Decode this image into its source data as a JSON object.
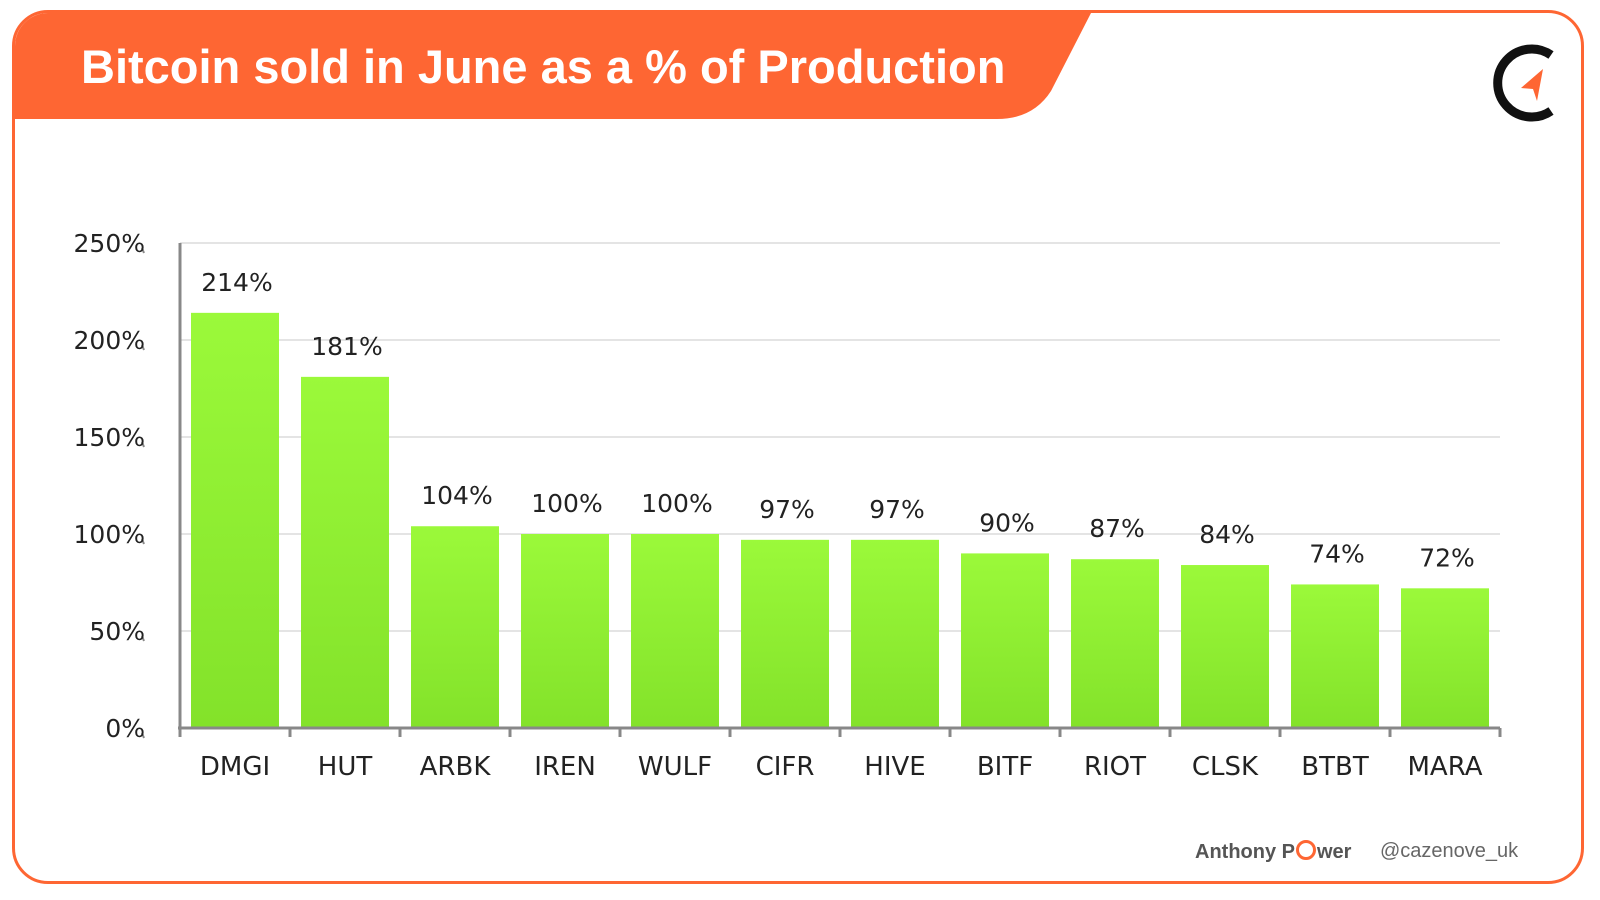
{
  "colors": {
    "brand": "#fe6633",
    "bar_top": "#9bf93a",
    "bar_bottom": "#83e22a",
    "axis": "#888888",
    "grid": "#e4e4e4",
    "text": "#222222"
  },
  "header": {
    "title": "Bitcoin sold in June as a % of Production",
    "logo_icon": "cazenove-c-logo-icon"
  },
  "footer": {
    "author_prefix": "Anthony P",
    "author_suffix": "wer",
    "handle": "@cazenove_uk"
  },
  "chart_data": {
    "type": "bar",
    "title": "Bitcoin sold in June as a % of Production",
    "xlabel": "",
    "ylabel": "",
    "categories": [
      "DMGI",
      "HUT",
      "ARBK",
      "IREN",
      "WULF",
      "CIFR",
      "HIVE",
      "BITF",
      "RIOT",
      "CLSK",
      "BTBT",
      "MARA"
    ],
    "values": [
      214,
      181,
      104,
      100,
      100,
      97,
      97,
      90,
      87,
      84,
      74,
      72
    ],
    "value_labels": [
      "214%",
      "181%",
      "104%",
      "100%",
      "100%",
      "97%",
      "97%",
      "90%",
      "87%",
      "84%",
      "74%",
      "72%"
    ],
    "ylim": [
      0,
      250
    ],
    "yticks": [
      0,
      50,
      100,
      150,
      200,
      250
    ],
    "ytick_labels": [
      "0%",
      "50%",
      "100%",
      "150%",
      "200%",
      "250%"
    ],
    "grid": true,
    "legend": "none"
  }
}
